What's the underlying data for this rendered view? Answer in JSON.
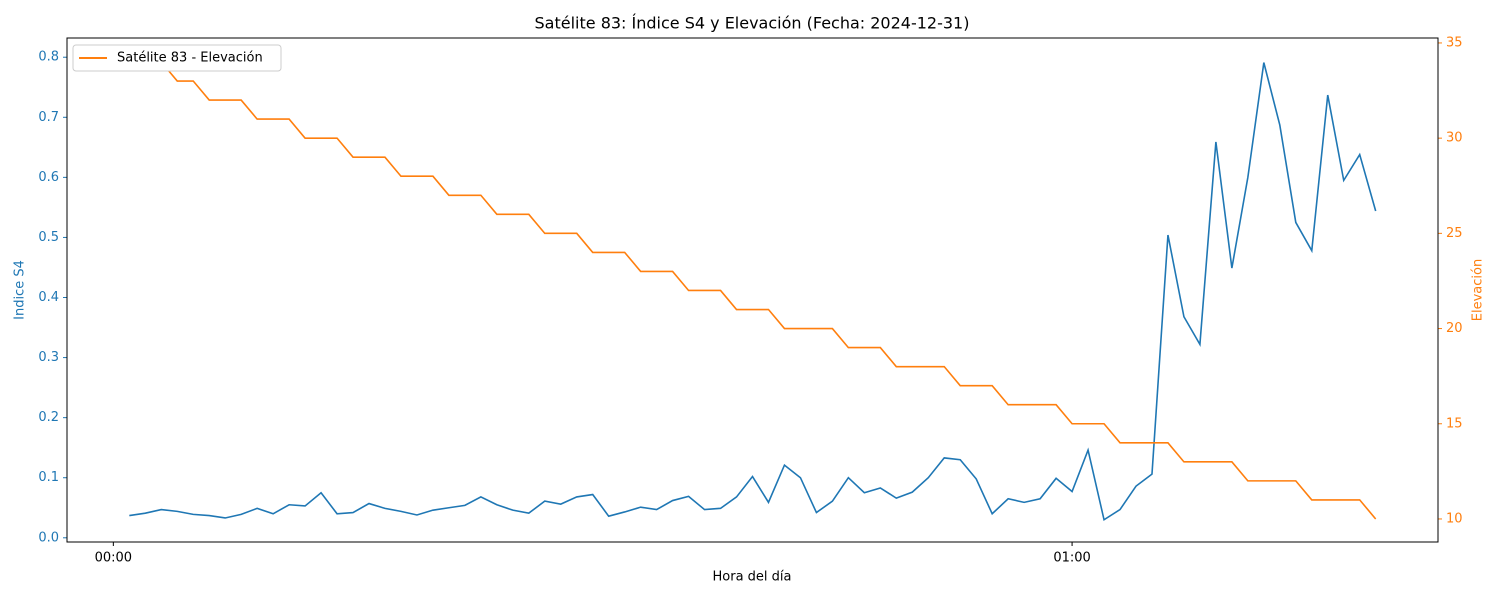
{
  "chart_data": {
    "type": "line",
    "title": "Satélite 83: Índice S4 y Elevación (Fecha: 2024-12-31)",
    "x_label": "Hora del día",
    "y_label": "Indice S4",
    "y2_label": "Elevación",
    "x": [
      1,
      2,
      3,
      4,
      5,
      6,
      7,
      8,
      9,
      10,
      11,
      12,
      13,
      14,
      15,
      16,
      17,
      18,
      19,
      20,
      21,
      22,
      23,
      24,
      25,
      26,
      27,
      28,
      29,
      30,
      31,
      32,
      33,
      34,
      35,
      36,
      37,
      38,
      39,
      40,
      41,
      42,
      43,
      44,
      45,
      46,
      47,
      48,
      49,
      50,
      51,
      52,
      53,
      54,
      55,
      56,
      57,
      58,
      59,
      60,
      61,
      62,
      63,
      64,
      65,
      66,
      67,
      68,
      69,
      70,
      71,
      72,
      73,
      74,
      75,
      76,
      77,
      78,
      79
    ],
    "series": [
      {
        "color": "#1f77b4",
        "axis": "y",
        "values": [
          0.037,
          0.041,
          0.047,
          0.044,
          0.039,
          0.037,
          0.033,
          0.039,
          0.049,
          0.04,
          0.055,
          0.053,
          0.075,
          0.04,
          0.042,
          0.057,
          0.049,
          0.044,
          0.038,
          0.046,
          0.05,
          0.054,
          0.068,
          0.055,
          0.046,
          0.041,
          0.061,
          0.056,
          0.068,
          0.072,
          0.036,
          0.043,
          0.051,
          0.047,
          0.062,
          0.069,
          0.047,
          0.049,
          0.068,
          0.102,
          0.059,
          0.121,
          0.1,
          0.042,
          0.061,
          0.1,
          0.075,
          0.083,
          0.066,
          0.076,
          0.1,
          0.133,
          0.13,
          0.098,
          0.04,
          0.065,
          0.059,
          0.065,
          0.099,
          0.077,
          0.146,
          0.03,
          0.047,
          0.086,
          0.106,
          0.504,
          0.368,
          0.322,
          0.659,
          0.449,
          0.6,
          0.791,
          0.687,
          0.525,
          0.478,
          0.737,
          0.595,
          0.638,
          0.544
        ]
      },
      {
        "name": "Satélite 83 - Elevación",
        "color": "#ff7f0e",
        "axis": "y2",
        "values": [
          34,
          34,
          34,
          33,
          33,
          32,
          32,
          32,
          31,
          31,
          31,
          30,
          30,
          30,
          29,
          29,
          29,
          28,
          28,
          28,
          27,
          27,
          27,
          26,
          26,
          26,
          25,
          25,
          25,
          24,
          24,
          24,
          23,
          23,
          23,
          22,
          22,
          22,
          21,
          21,
          21,
          20,
          20,
          20,
          20,
          19,
          19,
          19,
          18,
          18,
          18,
          18,
          17,
          17,
          17,
          16,
          16,
          16,
          16,
          15,
          15,
          15,
          14,
          14,
          14,
          14,
          13,
          13,
          13,
          13,
          12,
          12,
          12,
          12,
          11,
          11,
          11,
          11,
          10
        ]
      }
    ],
    "xlim": [
      -2.9,
      82.9
    ],
    "xticks": [
      {
        "value": 0,
        "label": "00:00"
      },
      {
        "value": 60,
        "label": "01:00"
      }
    ],
    "ylim": [
      -0.007,
      0.832
    ],
    "yticks": [
      {
        "value": 0,
        "label": "0.0"
      },
      0.1,
      0.2,
      0.3,
      0.4,
      0.5,
      0.6,
      0.7,
      0.8
    ],
    "y2lim": [
      8.79,
      35.26
    ],
    "y2ticks": [
      10,
      15,
      20,
      25,
      30,
      35
    ],
    "legend": "upper left",
    "grid": false
  }
}
